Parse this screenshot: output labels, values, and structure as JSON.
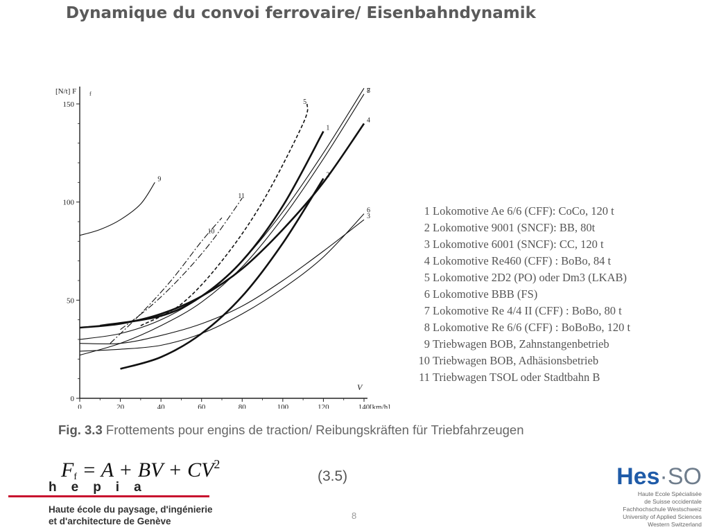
{
  "slide": {
    "title": "Dynamique du convoi ferrovaire/ Eisenbahndynamik",
    "page_number": "8"
  },
  "caption": {
    "label": "Fig. 3.3",
    "text": "Frottements pour engins de traction/ Reibungskräften für Triebfahrzeugen"
  },
  "formula": {
    "F": "F",
    "sub": "f",
    "rest": " = A + BV + CV",
    "sup": "2",
    "number": "(3.5)"
  },
  "legend": [
    {
      "num": "1",
      "text": "Lokomotive Ae 6/6 (CFF): CoCo, 120 t"
    },
    {
      "num": "2",
      "text": "Lokomotive 9001 (SNCF): BB, 80t"
    },
    {
      "num": "3",
      "text": "Lokomotive 6001 (SNCF): CC, 120 t"
    },
    {
      "num": "4",
      "text": "Lokomotive Re460 (CFF) : BoBo, 84 t"
    },
    {
      "num": "5",
      "text": "Lokomotive 2D2 (PO) oder Dm3 (LKAB)"
    },
    {
      "num": "6",
      "text": "Lokomotive BBB (FS)"
    },
    {
      "num": "7",
      "text": "Lokomotive Re 4/4 II (CFF) : BoBo, 80 t"
    },
    {
      "num": "8",
      "text": "Lokomotive Re 6/6 (CFF) : BoBoBo, 120 t"
    },
    {
      "num": "9",
      "text": "Triebwagen BOB, Zahnstangenbetrieb"
    },
    {
      "num": "10",
      "text": "Triebwagen BOB, Adhäsionsbetrieb"
    },
    {
      "num": "11",
      "text": "Triebwagen TSOL oder Stadtbahn B"
    }
  ],
  "logos": {
    "hepia_letters": [
      "h",
      "e",
      "p",
      "i",
      "a"
    ],
    "hepia_line1": "Haute école du paysage, d'ingénierie",
    "hepia_line2": "et d'architecture de Genève",
    "hes_main": "Hes",
    "hes_dot": "·",
    "hes_so": "SO",
    "hes_lines": [
      "Haute Ecole Spécialisée",
      "de Suisse occidentale",
      "Fachhochschule Westschweiz",
      "University of Applied Sciences",
      "Western Switzerland"
    ]
  },
  "chart_data": {
    "type": "line",
    "ylabel": "[N/t] F",
    "ylabel_sub": "f",
    "xlabel": "V",
    "xunit": "[km/h]",
    "xlim": [
      0,
      140
    ],
    "ylim": [
      0,
      150
    ],
    "x_ticks": [
      "0",
      "20",
      "40",
      "60",
      "80",
      "100",
      "120",
      "140"
    ],
    "y_ticks": [
      "0",
      "50",
      "100",
      "150"
    ],
    "series": [
      {
        "name": "1",
        "style": "bold",
        "points": [
          [
            10,
            37
          ],
          [
            40,
            42
          ],
          [
            60,
            52
          ],
          [
            80,
            70
          ],
          [
            100,
            98
          ],
          [
            120,
            136
          ]
        ]
      },
      {
        "name": "2",
        "style": "bold",
        "points": [
          [
            20,
            15
          ],
          [
            40,
            21
          ],
          [
            60,
            33
          ],
          [
            80,
            52
          ],
          [
            100,
            79
          ],
          [
            120,
            112
          ]
        ]
      },
      {
        "name": "3",
        "style": "solid",
        "points": [
          [
            0,
            28
          ],
          [
            20,
            28
          ],
          [
            40,
            32
          ],
          [
            60,
            38
          ],
          [
            80,
            47
          ],
          [
            100,
            60
          ],
          [
            120,
            75
          ],
          [
            140,
            91
          ]
        ]
      },
      {
        "name": "4",
        "style": "bold",
        "points": [
          [
            0,
            36
          ],
          [
            20,
            38
          ],
          [
            40,
            43
          ],
          [
            60,
            52
          ],
          [
            80,
            66
          ],
          [
            100,
            86
          ],
          [
            120,
            110
          ],
          [
            140,
            140
          ]
        ]
      },
      {
        "name": "5",
        "style": "dashed",
        "points": [
          [
            30,
            37
          ],
          [
            50,
            48
          ],
          [
            70,
            70
          ],
          [
            90,
            100
          ],
          [
            110,
            140
          ],
          [
            112,
            150
          ]
        ]
      },
      {
        "name": "6",
        "style": "solid",
        "points": [
          [
            0,
            24
          ],
          [
            20,
            25
          ],
          [
            40,
            27
          ],
          [
            60,
            33
          ],
          [
            80,
            43
          ],
          [
            100,
            56
          ],
          [
            120,
            72
          ],
          [
            140,
            94
          ]
        ]
      },
      {
        "name": "7",
        "style": "solid",
        "points": [
          [
            0,
            30
          ],
          [
            20,
            33
          ],
          [
            40,
            40
          ],
          [
            60,
            52
          ],
          [
            80,
            70
          ],
          [
            100,
            95
          ],
          [
            120,
            125
          ],
          [
            140,
            158
          ]
        ]
      },
      {
        "name": "8",
        "style": "solid",
        "points": [
          [
            0,
            22
          ],
          [
            20,
            28
          ],
          [
            40,
            37
          ],
          [
            60,
            49
          ],
          [
            80,
            67
          ],
          [
            100,
            92
          ],
          [
            120,
            122
          ],
          [
            140,
            155
          ]
        ]
      },
      {
        "name": "9",
        "style": "solid",
        "points": [
          [
            0,
            83
          ],
          [
            10,
            86
          ],
          [
            20,
            91
          ],
          [
            30,
            99
          ],
          [
            37,
            110
          ]
        ]
      },
      {
        "name": "10",
        "style": "dashdot",
        "points": [
          [
            15,
            28
          ],
          [
            30,
            43
          ],
          [
            45,
            60
          ],
          [
            60,
            80
          ],
          [
            70,
            92
          ]
        ]
      },
      {
        "name": "11",
        "style": "dashdot",
        "points": [
          [
            20,
            35
          ],
          [
            35,
            47
          ],
          [
            50,
            62
          ],
          [
            65,
            80
          ],
          [
            80,
            102
          ]
        ]
      }
    ]
  }
}
